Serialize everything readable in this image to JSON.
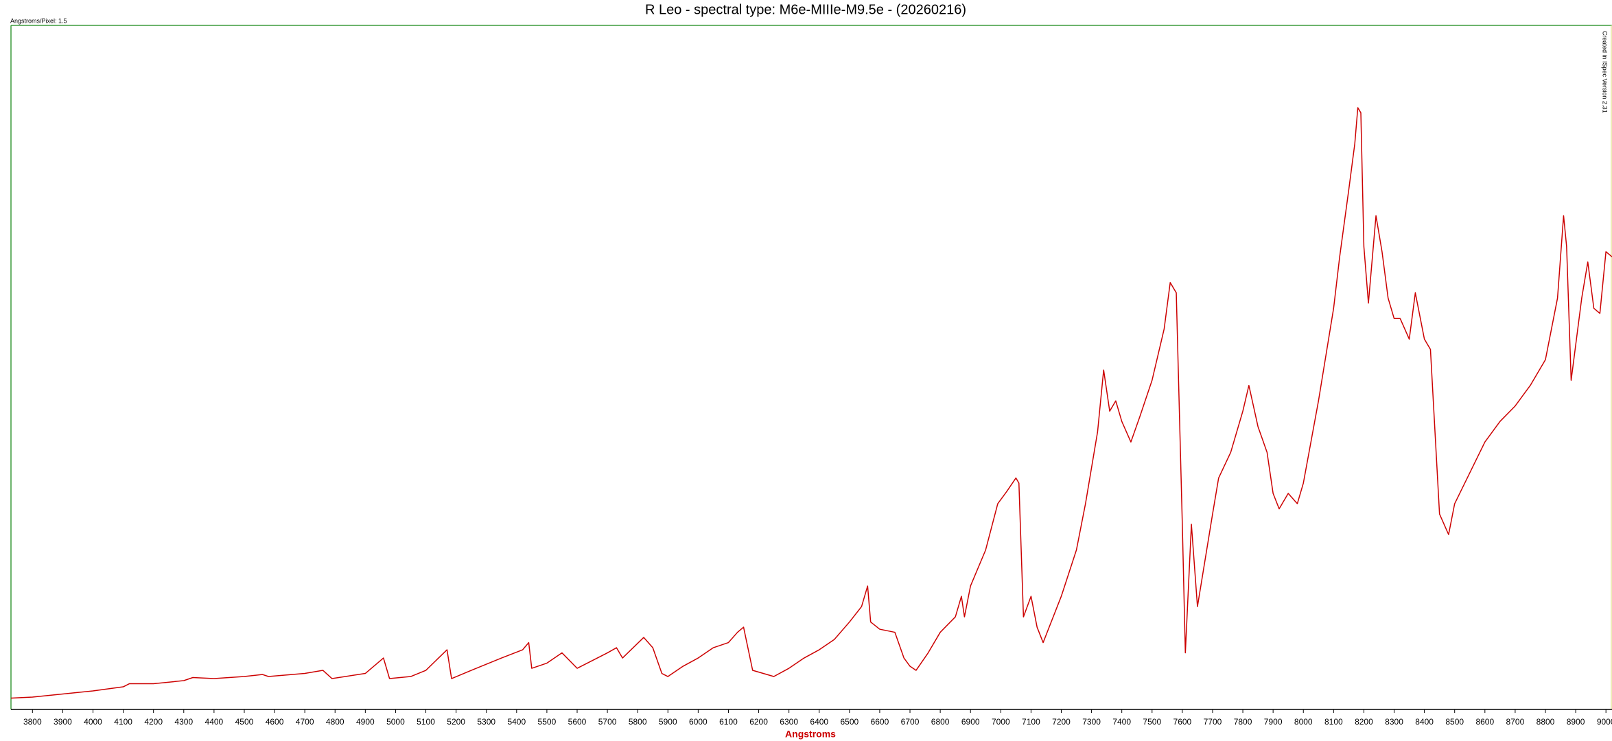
{
  "chart_data": {
    "type": "line",
    "title": "R Leo - spectral type: M6e-MIIIe-M9.5e - (20260216)",
    "subtitle": "Angstroms/Pixel: 1.5",
    "annotation": "Created in ISpec Version 2.31",
    "x_label": "Angstroms",
    "color": "#cc0000",
    "x": [
      3729,
      3800,
      3900,
      4000,
      4100,
      4120,
      4200,
      4300,
      4330,
      4400,
      4500,
      4560,
      4580,
      4700,
      4760,
      4790,
      4900,
      4960,
      4980,
      5050,
      5100,
      5170,
      5185,
      5250,
      5350,
      5420,
      5440,
      5450,
      5500,
      5550,
      5600,
      5700,
      5730,
      5750,
      5820,
      5850,
      5880,
      5900,
      5950,
      6000,
      6050,
      6100,
      6130,
      6150,
      6180,
      6250,
      6300,
      6350,
      6400,
      6450,
      6500,
      6540,
      6560,
      6570,
      6600,
      6650,
      6680,
      6700,
      6720,
      6760,
      6800,
      6850,
      6870,
      6880,
      6900,
      6950,
      6990,
      7020,
      7050,
      7060,
      7075,
      7100,
      7120,
      7140,
      7200,
      7250,
      7280,
      7320,
      7340,
      7360,
      7380,
      7400,
      7430,
      7460,
      7500,
      7540,
      7560,
      7580,
      7600,
      7610,
      7630,
      7650,
      7700,
      7720,
      7760,
      7800,
      7820,
      7850,
      7880,
      7900,
      7920,
      7950,
      7980,
      8000,
      8050,
      8100,
      8120,
      8150,
      8170,
      8180,
      8190,
      8200,
      8215,
      8240,
      8260,
      8280,
      8300,
      8320,
      8350,
      8370,
      8400,
      8420,
      8450,
      8480,
      8500,
      8550,
      8600,
      8650,
      8700,
      8750,
      8800,
      8840,
      8860,
      8870,
      8885,
      8920,
      8940,
      8960,
      8980,
      9000,
      9020
    ],
    "values": [
      11,
      12,
      15,
      18,
      22,
      25,
      25,
      28,
      31,
      30,
      32,
      34,
      32,
      35,
      38,
      30,
      35,
      50,
      30,
      32,
      38,
      58,
      30,
      38,
      50,
      58,
      65,
      40,
      45,
      55,
      40,
      55,
      60,
      50,
      70,
      60,
      35,
      32,
      42,
      50,
      60,
      65,
      75,
      80,
      38,
      32,
      40,
      50,
      58,
      68,
      85,
      100,
      120,
      85,
      78,
      75,
      50,
      42,
      38,
      55,
      75,
      90,
      110,
      90,
      120,
      155,
      200,
      212,
      225,
      220,
      90,
      110,
      80,
      65,
      110,
      155,
      200,
      270,
      330,
      290,
      300,
      280,
      260,
      285,
      320,
      370,
      415,
      405,
      180,
      55,
      180,
      100,
      190,
      225,
      250,
      290,
      315,
      275,
      250,
      210,
      195,
      210,
      200,
      220,
      300,
      390,
      440,
      505,
      550,
      585,
      580,
      450,
      395,
      480,
      445,
      400,
      380,
      380,
      360,
      405,
      360,
      350,
      190,
      170,
      200,
      230,
      260,
      280,
      295,
      315,
      340,
      400,
      480,
      450,
      320,
      400,
      435,
      390,
      385,
      445,
      440
    ],
    "xlim": [
      3729,
      9020
    ],
    "ylim": [
      0,
      665
    ],
    "xticks": [
      3800,
      3900,
      4000,
      4100,
      4200,
      4300,
      4400,
      4500,
      4600,
      4700,
      4800,
      4900,
      5000,
      5100,
      5200,
      5300,
      5400,
      5500,
      5600,
      5700,
      5800,
      5900,
      6000,
      6100,
      6200,
      6300,
      6400,
      6500,
      6600,
      6700,
      6800,
      6900,
      7000,
      7100,
      7200,
      7300,
      7400,
      7500,
      7600,
      7700,
      7800,
      7900,
      8000,
      8100,
      8200,
      8300,
      8400,
      8500,
      8600,
      8700,
      8800,
      8900,
      9000
    ]
  }
}
